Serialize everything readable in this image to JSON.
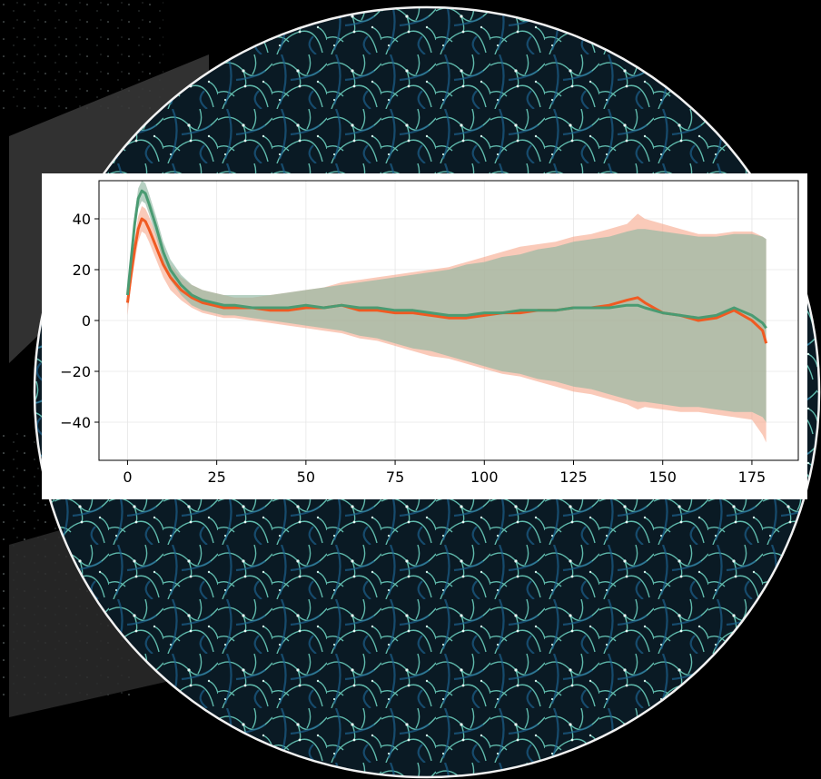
{
  "colors": {
    "background": "#000000",
    "web_teal": "#6fd6c4",
    "web_blue": "#1b5f8c",
    "orange_line": "#f05a22",
    "green_line": "#4a9b72",
    "orange_band": "#f7a78a",
    "green_band": "#8fb7a2"
  },
  "icons": [
    "cosmic-web-background"
  ],
  "chart_data": {
    "type": "line",
    "title": "",
    "xlabel": "",
    "ylabel": "",
    "xlim": [
      -8,
      188
    ],
    "ylim": [
      -55,
      55
    ],
    "xticks": [
      0,
      25,
      50,
      75,
      100,
      125,
      150,
      175
    ],
    "yticks": [
      -40,
      -20,
      0,
      20,
      40
    ],
    "grid": true,
    "legend": "none",
    "x": [
      0,
      1,
      2,
      3,
      4,
      5,
      6,
      8,
      10,
      12,
      15,
      18,
      21,
      24,
      27,
      30,
      35,
      40,
      45,
      50,
      55,
      60,
      65,
      70,
      75,
      80,
      85,
      90,
      95,
      100,
      105,
      110,
      115,
      120,
      125,
      130,
      135,
      140,
      143,
      145,
      150,
      155,
      160,
      165,
      170,
      175,
      178,
      179
    ],
    "series": [
      {
        "color": "#f05a22",
        "values": [
          7,
          18,
          28,
          36,
          40,
          39,
          36,
          29,
          22,
          17,
          12,
          9,
          7,
          6,
          5,
          5,
          5,
          4,
          4,
          5,
          5,
          6,
          4,
          4,
          3,
          3,
          2,
          1,
          1,
          2,
          3,
          3,
          4,
          4,
          5,
          5,
          6,
          8,
          9,
          7,
          3,
          2,
          0,
          1,
          4,
          0,
          -4,
          -9
        ],
        "band_lower": [
          2,
          14,
          23,
          31,
          35,
          34,
          31,
          24,
          17,
          12,
          8,
          5,
          3,
          2,
          1,
          1,
          0,
          -1,
          -2,
          -3,
          -4,
          -5,
          -7,
          -8,
          -10,
          -12,
          -14,
          -15,
          -17,
          -19,
          -21,
          -22,
          -24,
          -26,
          -28,
          -29,
          -31,
          -33,
          -35,
          -34,
          -35,
          -36,
          -36,
          -37,
          -38,
          -39,
          -45,
          -48
        ],
        "band_upper": [
          12,
          22,
          32,
          41,
          45,
          44,
          41,
          34,
          27,
          22,
          17,
          14,
          12,
          11,
          10,
          9,
          9,
          10,
          11,
          12,
          13,
          15,
          16,
          17,
          18,
          19,
          20,
          21,
          23,
          25,
          27,
          29,
          30,
          31,
          33,
          34,
          36,
          38,
          42,
          40,
          38,
          36,
          34,
          34,
          35,
          35,
          33,
          32
        ]
      },
      {
        "color": "#4a9b72",
        "values": [
          10,
          24,
          38,
          48,
          51,
          50,
          46,
          37,
          27,
          20,
          14,
          10,
          8,
          7,
          6,
          6,
          5,
          5,
          5,
          6,
          5,
          6,
          5,
          5,
          4,
          4,
          3,
          2,
          2,
          3,
          3,
          4,
          4,
          4,
          5,
          5,
          5,
          6,
          6,
          5,
          3,
          2,
          1,
          2,
          5,
          2,
          -1,
          -3
        ],
        "band_lower": [
          6,
          20,
          34,
          44,
          47,
          46,
          42,
          33,
          23,
          16,
          10,
          6,
          4,
          3,
          2,
          2,
          1,
          0,
          -1,
          -2,
          -3,
          -4,
          -6,
          -7,
          -9,
          -11,
          -12,
          -14,
          -16,
          -18,
          -20,
          -21,
          -23,
          -24,
          -26,
          -27,
          -29,
          -31,
          -32,
          -32,
          -33,
          -34,
          -34,
          -35,
          -36,
          -36,
          -38,
          -40
        ],
        "band_upper": [
          14,
          28,
          42,
          52,
          55,
          54,
          50,
          41,
          31,
          24,
          18,
          14,
          12,
          11,
          10,
          10,
          10,
          10,
          11,
          12,
          13,
          14,
          15,
          16,
          17,
          18,
          19,
          20,
          22,
          23,
          25,
          26,
          28,
          29,
          31,
          32,
          33,
          35,
          36,
          36,
          35,
          34,
          33,
          33,
          34,
          34,
          33,
          32
        ]
      }
    ]
  }
}
